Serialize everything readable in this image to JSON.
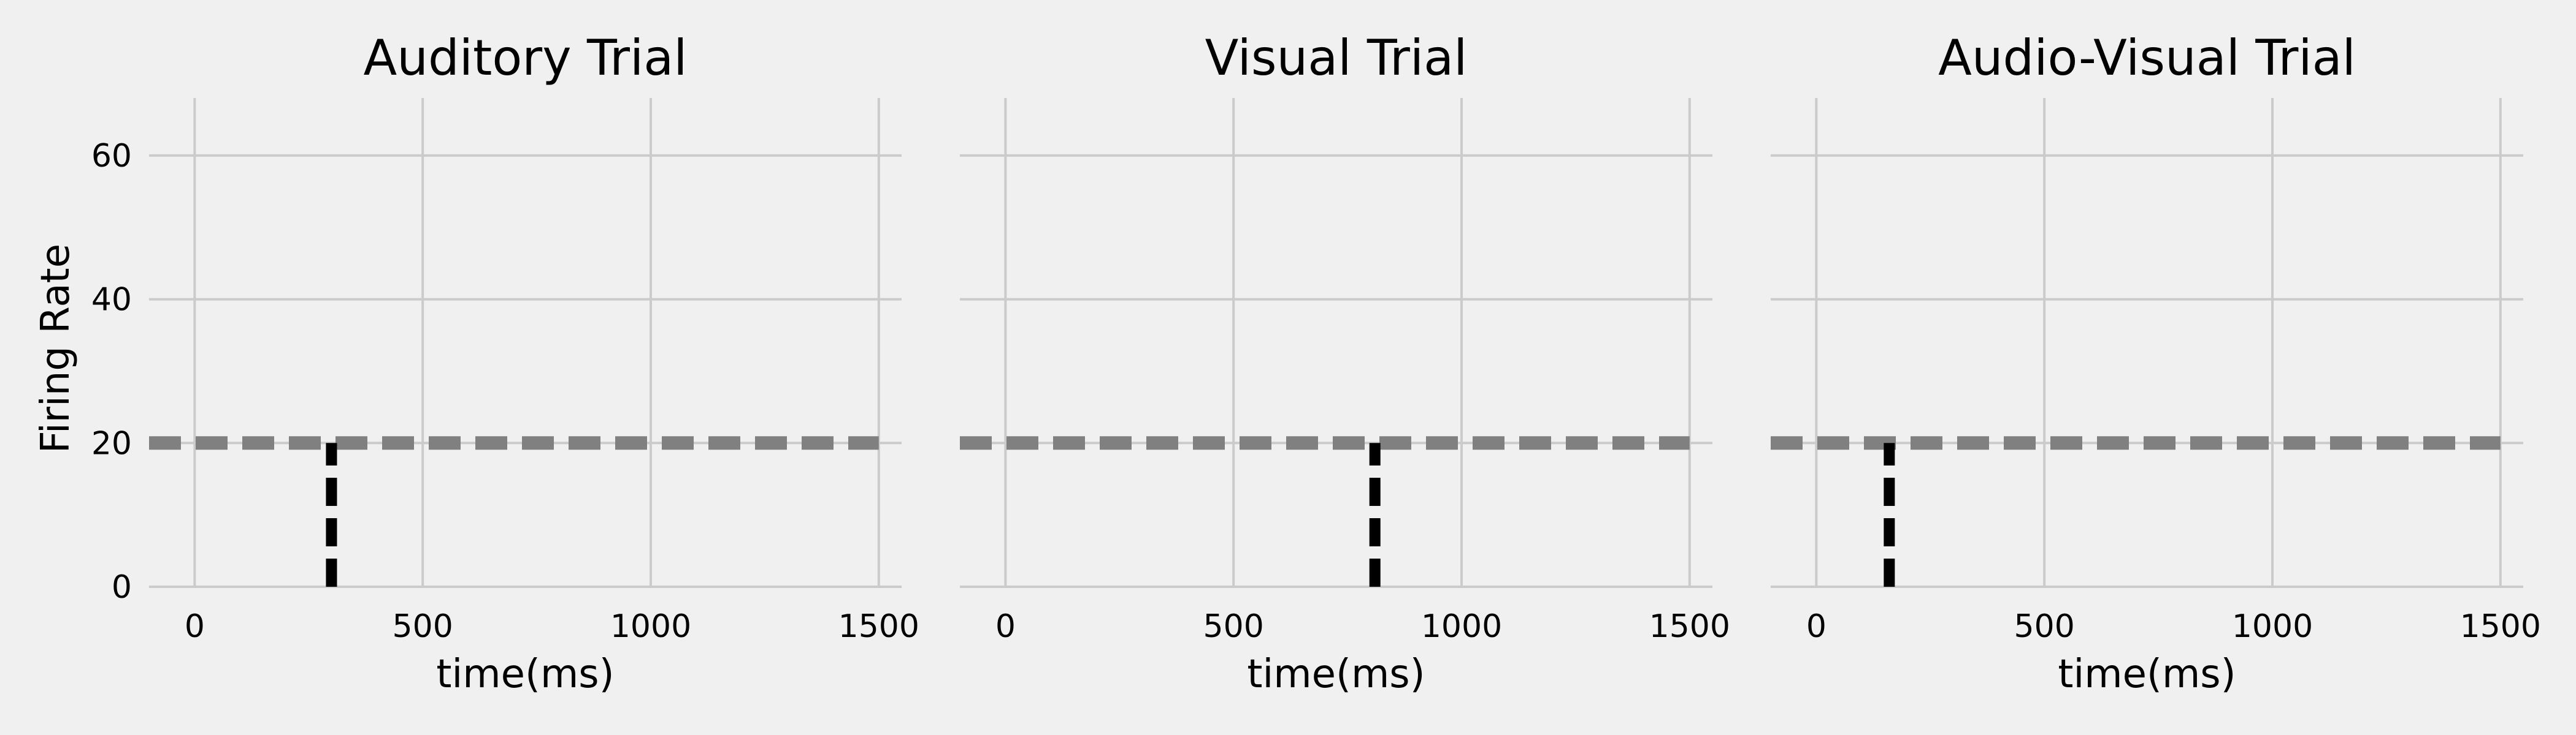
{
  "chart_data": [
    {
      "type": "line",
      "title": "Auditory Trial",
      "xlabel": "time(ms)",
      "ylabel": "Firing Rate",
      "xlim": [
        -100,
        1550
      ],
      "ylim": [
        0,
        68
      ],
      "xticks": [
        0,
        500,
        1000,
        1500
      ],
      "yticks": [
        0,
        20,
        40,
        60
      ],
      "grid": true,
      "series": [
        {
          "style": "dashed",
          "color": "#808080",
          "x": [
            -100,
            1500
          ],
          "y": [
            20,
            20
          ]
        },
        {
          "style": "dashed",
          "color": "#000000",
          "x": [
            300,
            300
          ],
          "y": [
            0,
            20
          ]
        }
      ]
    },
    {
      "type": "line",
      "title": "Visual Trial",
      "xlabel": "time(ms)",
      "ylabel": "",
      "xlim": [
        -100,
        1550
      ],
      "ylim": [
        0,
        68
      ],
      "xticks": [
        0,
        500,
        1000,
        1500
      ],
      "yticks": [
        0,
        20,
        40,
        60
      ],
      "grid": true,
      "series": [
        {
          "style": "dashed",
          "color": "#808080",
          "x": [
            -100,
            1500
          ],
          "y": [
            20,
            20
          ]
        },
        {
          "style": "dashed",
          "color": "#000000",
          "x": [
            810,
            810
          ],
          "y": [
            0,
            20
          ]
        }
      ]
    },
    {
      "type": "line",
      "title": "Audio-Visual Trial",
      "xlabel": "time(ms)",
      "ylabel": "",
      "xlim": [
        -100,
        1550
      ],
      "ylim": [
        0,
        68
      ],
      "xticks": [
        0,
        500,
        1000,
        1500
      ],
      "yticks": [
        0,
        20,
        40,
        60
      ],
      "grid": true,
      "series": [
        {
          "style": "dashed",
          "color": "#808080",
          "x": [
            -100,
            1500
          ],
          "y": [
            20,
            20
          ]
        },
        {
          "style": "dashed",
          "color": "#000000",
          "x": [
            160,
            160
          ],
          "y": [
            0,
            20
          ]
        }
      ]
    }
  ]
}
